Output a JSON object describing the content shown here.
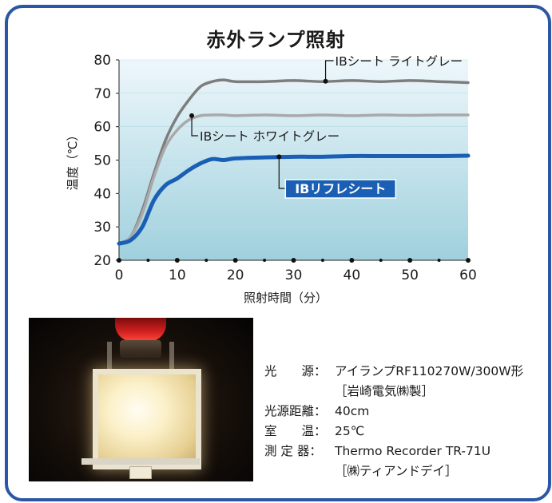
{
  "chart_data": {
    "type": "line",
    "title": "赤外ランプ照射",
    "xlabel": "照射時間（分）",
    "ylabel": "温度（℃）",
    "xlim": [
      0,
      60
    ],
    "ylim": [
      20,
      80
    ],
    "xticks": [
      "0",
      "10",
      "20",
      "30",
      "40",
      "50",
      "60"
    ],
    "yticks": [
      "20",
      "30",
      "40",
      "50",
      "60",
      "70",
      "80"
    ],
    "grid": false,
    "series": [
      {
        "name": "IBシート ライトグレー",
        "color": "#7d7d7d",
        "x": [
          0,
          2,
          4,
          6,
          8,
          10,
          12,
          14,
          16,
          18,
          20,
          25,
          30,
          35,
          40,
          45,
          50,
          55,
          60
        ],
        "y": [
          25,
          27,
          35,
          46,
          56,
          63,
          68,
          72,
          73.5,
          74,
          73.5,
          73.5,
          73.8,
          73.5,
          73.8,
          73.5,
          73.8,
          73.5,
          73.2
        ]
      },
      {
        "name": "IBシート ホワイトグレー",
        "color": "#a9a9a9",
        "x": [
          0,
          2,
          4,
          6,
          8,
          10,
          12,
          14,
          16,
          18,
          20,
          25,
          30,
          35,
          40,
          45,
          50,
          55,
          60
        ],
        "y": [
          25,
          27,
          34,
          45,
          54,
          59,
          62,
          63.3,
          63.5,
          63.5,
          63.3,
          63.5,
          63.3,
          63.5,
          63.3,
          63.5,
          63.4,
          63.5,
          63.5
        ]
      },
      {
        "name": "IBリフレシート",
        "color": "#1a5fb4",
        "x": [
          0,
          2,
          4,
          6,
          8,
          10,
          12,
          14,
          16,
          18,
          20,
          25,
          30,
          35,
          40,
          45,
          50,
          55,
          60
        ],
        "y": [
          25,
          26,
          30,
          38,
          42.5,
          44.5,
          47,
          49,
          50.3,
          50,
          50.5,
          50.8,
          51,
          51,
          51.2,
          51.2,
          51.2,
          51.2,
          51.3
        ]
      }
    ],
    "annotations": [
      {
        "label": "IBシート ライトグレー",
        "x": 35.5,
        "y": 73.6
      },
      {
        "label": "IBシート ホワイトグレー",
        "x": 12.5,
        "y": 63.3
      },
      {
        "label": "IBリフレシート",
        "x": 27.5,
        "y": 51.0
      }
    ]
  },
  "info": {
    "rows": [
      {
        "label": "光　　源：",
        "value": "アイランプRF110270W/300W形"
      },
      {
        "label": "",
        "value": "［岩崎電気㈱製］"
      },
      {
        "label": "光源距離：",
        "value": "40cm"
      },
      {
        "label": "室　　温：",
        "value": "25℃"
      },
      {
        "label": "測 定 器：",
        "value": "Thermo Recorder TR-71U"
      },
      {
        "label": "",
        "value": "［㈱ティアンドデイ］"
      }
    ]
  }
}
